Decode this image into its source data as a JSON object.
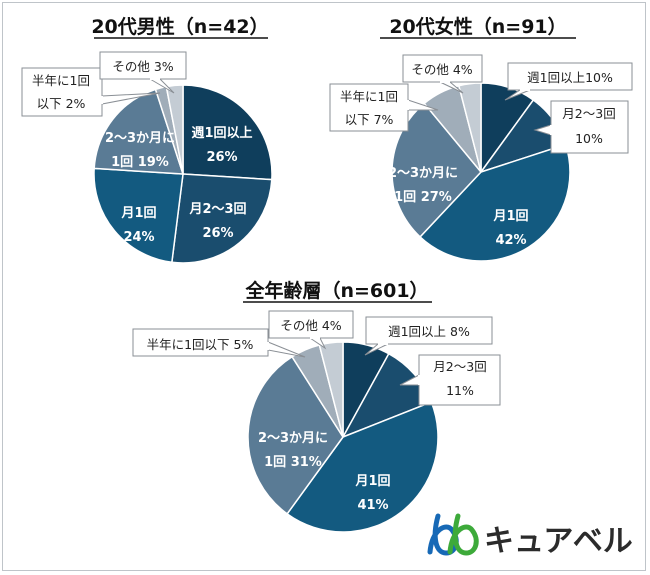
{
  "colors": {
    "weekly": "#0f3e5c",
    "monthly2_3": "#1a4d6e",
    "monthly1": "#135a80",
    "every2_3months": "#5a7b95",
    "halfyear": "#a0adb9",
    "other": "#c4ccd4",
    "brand_blue": "#1769b6",
    "brand_green": "#3daa3a"
  },
  "brand": {
    "name": "キュアベル",
    "logo_icon": "double-loop-logo-icon"
  },
  "chart_data": [
    {
      "type": "pie",
      "title": "20代男性（n=42）",
      "slices": [
        {
          "key": "weekly",
          "inside": [
            "週1回以上",
            "26%"
          ],
          "value": 26
        },
        {
          "key": "monthly2_3",
          "inside": [
            "月2～3回",
            "26%"
          ],
          "value": 26
        },
        {
          "key": "monthly1",
          "inside": [
            "月1回",
            "24%"
          ],
          "value": 24
        },
        {
          "key": "every2_3months",
          "inside": [
            "2～3か月に",
            "1回 19%"
          ],
          "value": 19
        },
        {
          "key": "halfyear",
          "callout": [
            "半年に1回",
            "以下  2%"
          ],
          "value": 2
        },
        {
          "key": "other",
          "callout": [
            "その他 3%"
          ],
          "value": 3
        }
      ]
    },
    {
      "type": "pie",
      "title": "20代女性（n=91）",
      "slices": [
        {
          "key": "weekly",
          "callout": [
            "週1回以上10%"
          ],
          "value": 10
        },
        {
          "key": "monthly2_3",
          "callout": [
            "月2～3回",
            "10%"
          ],
          "value": 10
        },
        {
          "key": "monthly1",
          "inside": [
            "月1回",
            "42%"
          ],
          "value": 42
        },
        {
          "key": "every2_3months",
          "inside": [
            "2～3か月に",
            "1回  27%"
          ],
          "value": 27
        },
        {
          "key": "halfyear",
          "callout": [
            "半年に1回",
            "以下  7%"
          ],
          "value": 7
        },
        {
          "key": "other",
          "callout": [
            "その他 4%"
          ],
          "value": 4
        }
      ]
    },
    {
      "type": "pie",
      "title": "全年齢層（n=601）",
      "slices": [
        {
          "key": "weekly",
          "callout": [
            "週1回以上  8%"
          ],
          "value": 8
        },
        {
          "key": "monthly2_3",
          "callout": [
            "月2～3回",
            "11%"
          ],
          "value": 11
        },
        {
          "key": "monthly1",
          "inside": [
            "月1回",
            "41%"
          ],
          "value": 41
        },
        {
          "key": "every2_3months",
          "inside": [
            "2～3か月に",
            "1回 31%"
          ],
          "value": 31
        },
        {
          "key": "halfyear",
          "callout": [
            "半年に1回以下 5%"
          ],
          "value": 5
        },
        {
          "key": "other",
          "callout": [
            "その他 4%"
          ],
          "value": 4
        }
      ]
    }
  ]
}
